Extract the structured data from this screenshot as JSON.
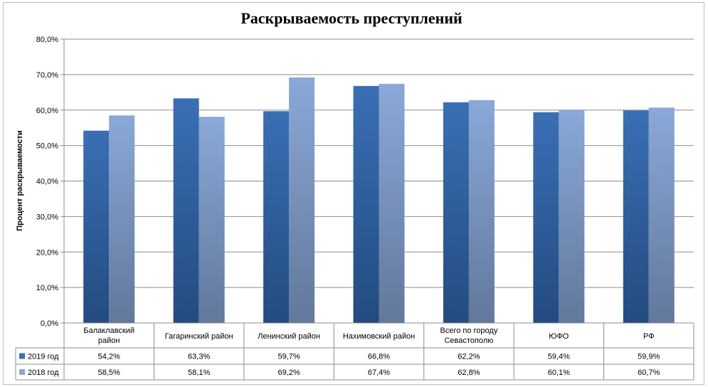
{
  "chart_data": {
    "type": "bar",
    "title": "Раскрываемость преступлений",
    "ylabel": "Процент раскрываемости",
    "xlabel": "",
    "ylim": [
      0,
      80
    ],
    "yticks": [
      "0,0%",
      "10,0%",
      "20,0%",
      "30,0%",
      "40,0%",
      "50,0%",
      "60,0%",
      "70,0%",
      "80,0%"
    ],
    "grid": true,
    "legend": "data-table",
    "categories": [
      [
        "Балаклавский",
        "район"
      ],
      [
        "Гагаринский район"
      ],
      [
        "Ленинский район"
      ],
      [
        "Нахимовский район"
      ],
      [
        "Всего по городу",
        "Севастополю"
      ],
      [
        "ЮФО"
      ],
      [
        "РФ"
      ]
    ],
    "series": [
      {
        "name": "2019 год",
        "values": [
          54.2,
          63.3,
          59.7,
          66.8,
          62.2,
          59.4,
          59.9
        ],
        "labels": [
          "54,2%",
          "63,3%",
          "59,7%",
          "66,8%",
          "62,2%",
          "59,4%",
          "59,9%"
        ],
        "color_top": "#3a6fb5",
        "color_bottom": "#234b80"
      },
      {
        "name": "2018 год",
        "values": [
          58.5,
          58.1,
          69.2,
          67.4,
          62.8,
          60.1,
          60.7
        ],
        "labels": [
          "58,5%",
          "58,1%",
          "69,2%",
          "67,4%",
          "62,8%",
          "60,1%",
          "60,7%"
        ],
        "color_top": "#8aa8d8",
        "color_bottom": "#62789c"
      }
    ]
  }
}
